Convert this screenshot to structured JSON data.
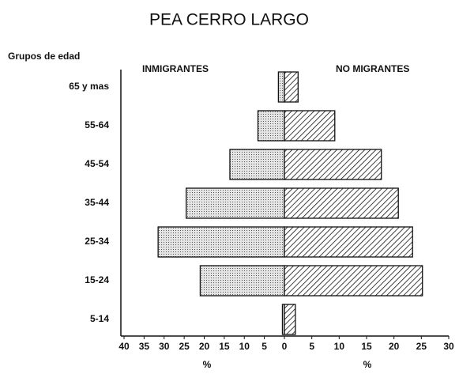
{
  "chart_data": {
    "type": "pyramid",
    "title": "PEA CERRO LARGO",
    "y_label": "Grupos de edad",
    "x_label": "%",
    "categories": [
      "65 y mas",
      "55-64",
      "45-54",
      "35-44",
      "25-34",
      "15-24",
      "5-14"
    ],
    "series": [
      {
        "name": "INMIGRANTES",
        "side": "left",
        "values": [
          1.5,
          6.6,
          13.6,
          24.5,
          31.5,
          21,
          0.5
        ]
      },
      {
        "name": "NO MIGRANTES",
        "side": "right",
        "values": [
          2.5,
          9.2,
          17.7,
          20.8,
          23.4,
          25.2,
          2
        ]
      }
    ],
    "left_xlim": [
      40,
      0
    ],
    "left_xticks": [
      40,
      35,
      30,
      25,
      20,
      15,
      10,
      5,
      0
    ],
    "right_xlim": [
      0,
      30
    ],
    "right_xticks": [
      0,
      5,
      10,
      15,
      20,
      25,
      30
    ]
  }
}
